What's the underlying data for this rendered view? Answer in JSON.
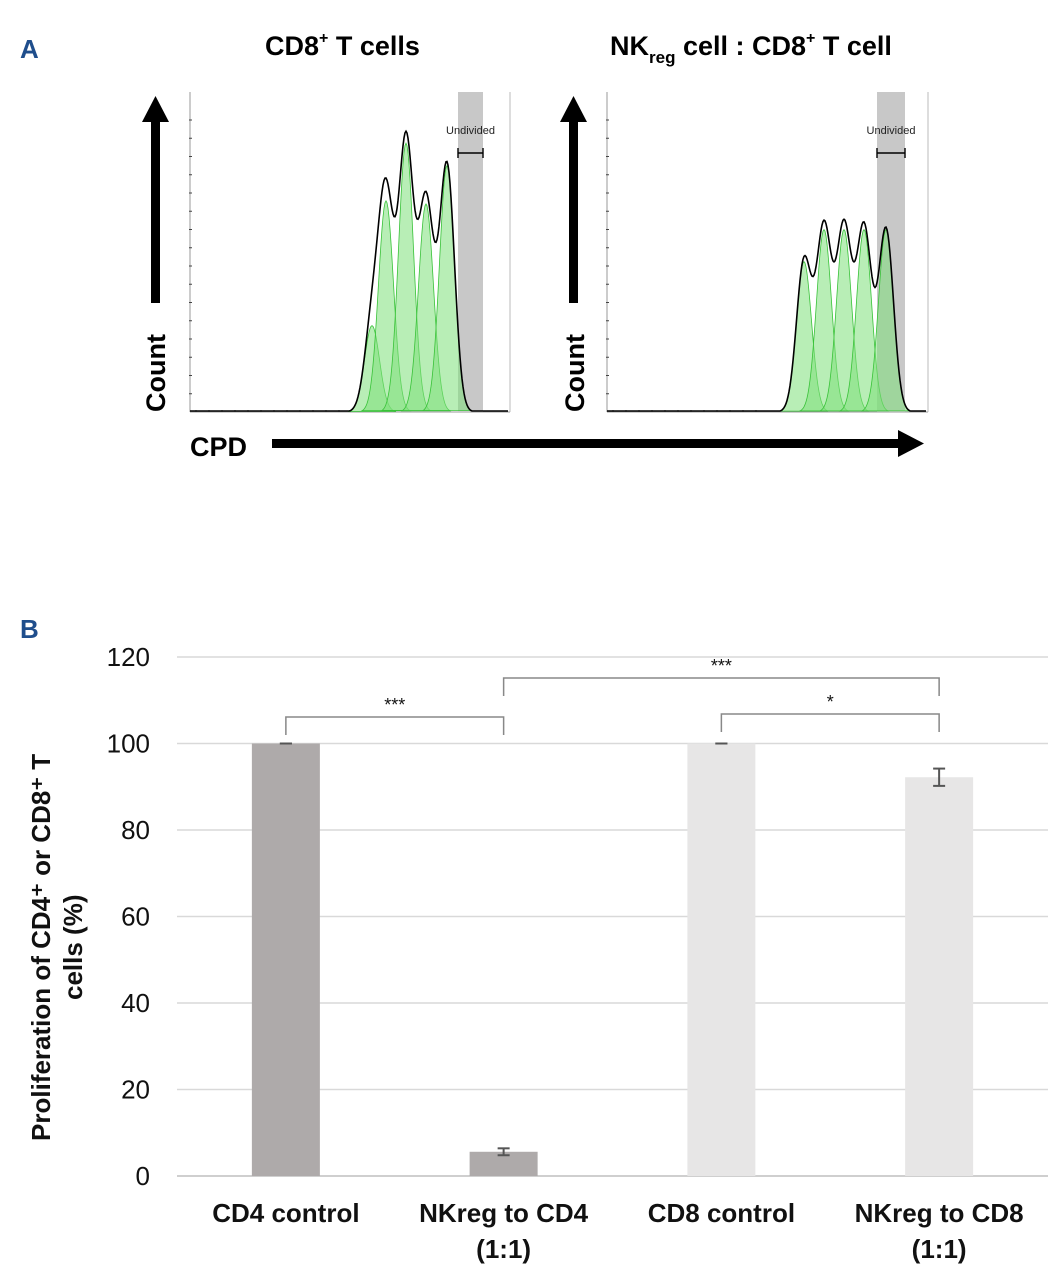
{
  "panel_a": {
    "letter": "A",
    "left_title_main": "CD8",
    "left_title_sup": "+",
    "left_title_rest": " T cells",
    "right_title_nk": "NK",
    "right_title_sub": "reg",
    "right_title_mid": " cell : CD8",
    "right_title_sup": "+",
    "right_title_rest": " T cell",
    "y_label": "Count",
    "x_label": "CPD",
    "gate_label": "Undivided"
  },
  "panel_b": {
    "letter": "B"
  },
  "colors": {
    "panel_letter": "#1f4e8c",
    "cd4_bar": "#aeaaaa",
    "cd8_bar": "#e7e6e6",
    "gate": "#c8c8c8",
    "peak_fill": "#7ee07a",
    "grid": "#d9d9d9"
  },
  "chart_data": [
    {
      "type": "histogram",
      "title": "CD8+ T cells",
      "xlabel": "CPD",
      "ylabel": "Count",
      "gate": "Undivided",
      "peaks": [
        {
          "generation": 4,
          "relative_height": 0.27
        },
        {
          "generation": 3,
          "relative_height": 0.66
        },
        {
          "generation": 2,
          "relative_height": 0.84
        },
        {
          "generation": 1,
          "relative_height": 0.65
        },
        {
          "generation": 0,
          "relative_height": 0.77
        }
      ]
    },
    {
      "type": "histogram",
      "title": "NKreg cell : CD8+ T cell",
      "xlabel": "CPD",
      "ylabel": "Count",
      "gate": "Undivided",
      "peaks": [
        {
          "generation": 4,
          "relative_height": 0.47
        },
        {
          "generation": 3,
          "relative_height": 0.57
        },
        {
          "generation": 2,
          "relative_height": 0.57
        },
        {
          "generation": 1,
          "relative_height": 0.57
        },
        {
          "generation": 0,
          "relative_height": 0.57
        }
      ]
    },
    {
      "type": "bar",
      "ylabel": "Proliferation of CD4⁺ or CD8⁺ T cells (%)",
      "ylabel_line1": "Proliferation of CD4⁺ or CD8⁺ T",
      "ylabel_line2": "cells (%)",
      "ylim": [
        0,
        120
      ],
      "yticks": [
        "0",
        "20",
        "40",
        "60",
        "80",
        "100",
        "120"
      ],
      "categories": [
        {
          "line1": "CD4 control",
          "line2": ""
        },
        {
          "line1": "NKreg to CD4",
          "line2": "(1:1)"
        },
        {
          "line1": "CD8 control",
          "line2": ""
        },
        {
          "line1": "NKreg to CD8",
          "line2": "(1:1)"
        }
      ],
      "values": [
        100,
        5.6,
        100,
        92.2
      ],
      "errors": [
        0,
        0.8,
        0,
        2.0
      ],
      "bar_colors": [
        "#aeaaaa",
        "#aeaaaa",
        "#e7e6e6",
        "#e7e6e6"
      ],
      "significance": [
        {
          "from": 0,
          "to": 1,
          "label": "***"
        },
        {
          "from": 1,
          "to": 3,
          "label": "***"
        },
        {
          "from": 2,
          "to": 3,
          "label": "*"
        }
      ]
    }
  ]
}
